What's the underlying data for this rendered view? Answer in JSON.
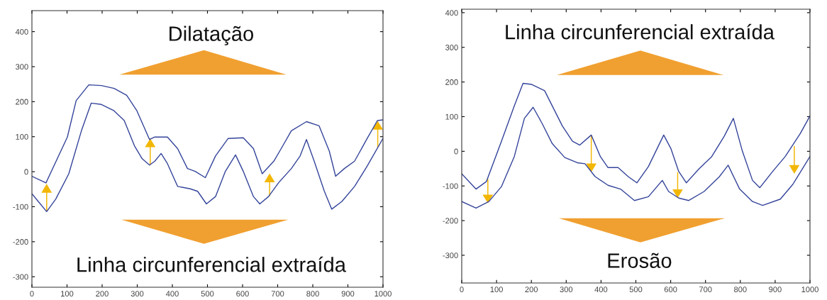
{
  "chart_data": [
    {
      "type": "line",
      "xlim": [
        0,
        1000
      ],
      "ylim": [
        -330,
        460
      ],
      "xticks": [
        0,
        100,
        200,
        300,
        400,
        500,
        600,
        700,
        800,
        900,
        1000
      ],
      "yticks": [
        -300,
        -200,
        -100,
        0,
        100,
        200,
        300,
        400
      ],
      "grid": false,
      "annotations": [
        "Dilatação",
        "Linha circunferencial extraída"
      ],
      "series": [
        {
          "color": "#34449a",
          "x": [
            0,
            40,
            101,
            126,
            162,
            198,
            234,
            270,
            299,
            335,
            350,
            386,
            415,
            443,
            465,
            494,
            523,
            559,
            602,
            631,
            656,
            689,
            710,
            739,
            782,
            818,
            847,
            865,
            890,
            919,
            955,
            984,
            1000
          ],
          "values": [
            -13,
            -32,
            99,
            203,
            248,
            246,
            238,
            218,
            174,
            92,
            99,
            99,
            66,
            9,
            1,
            -17,
            45,
            95,
            97,
            66,
            -6,
            30,
            66,
            117,
            143,
            131,
            59,
            -13,
            9,
            30,
            95,
            146,
            148
          ]
        },
        {
          "color": "#34449a",
          "x": [
            0,
            18,
            42,
            68,
            105,
            141,
            169,
            198,
            234,
            263,
            292,
            314,
            335,
            350,
            368,
            386,
            415,
            451,
            472,
            497,
            523,
            551,
            580,
            602,
            631,
            649,
            674,
            703,
            739,
            764,
            782,
            804,
            833,
            854,
            883,
            919,
            955,
            1000
          ],
          "values": [
            -63,
            -85,
            -114,
            -78,
            -6,
            117,
            196,
            192,
            174,
            146,
            74,
            37,
            19,
            30,
            52,
            23,
            -42,
            -49,
            -56,
            -92,
            -71,
            1,
            48,
            1,
            -71,
            -92,
            -71,
            -31,
            9,
            45,
            92,
            30,
            -56,
            -107,
            -85,
            -42,
            16,
            95
          ]
        }
      ]
    },
    {
      "type": "line",
      "xlim": [
        0,
        1000
      ],
      "ylim": [
        -380,
        410
      ],
      "xticks": [
        0,
        100,
        200,
        300,
        400,
        500,
        600,
        700,
        800,
        900,
        1000
      ],
      "yticks": [
        -300,
        -200,
        -100,
        0,
        100,
        200,
        300,
        400
      ],
      "grid": false,
      "annotations": [
        "Linha circunferencial extraída",
        "Erosão"
      ],
      "series": [
        {
          "color": "#34449a",
          "x": [
            0,
            41,
            71,
            114,
            151,
            176,
            201,
            238,
            260,
            289,
            318,
            339,
            372,
            398,
            420,
            449,
            478,
            503,
            536,
            580,
            601,
            623,
            645,
            681,
            718,
            754,
            780,
            806,
            835,
            856,
            893,
            929,
            972,
            1000
          ],
          "values": [
            -65,
            -109,
            -87,
            29,
            131,
            196,
            193,
            175,
            131,
            73,
            29,
            18,
            47,
            -15,
            -47,
            -47,
            -73,
            -91,
            -44,
            47,
            7,
            -58,
            -91,
            -51,
            -15,
            44,
            95,
            0,
            -84,
            -105,
            -58,
            -15,
            51,
            102
          ]
        },
        {
          "color": "#34449a",
          "x": [
            0,
            41,
            78,
            114,
            151,
            180,
            205,
            231,
            260,
            296,
            332,
            354,
            383,
            420,
            456,
            496,
            536,
            576,
            594,
            623,
            652,
            696,
            740,
            765,
            798,
            835,
            864,
            915,
            951,
            1000
          ],
          "values": [
            -145,
            -164,
            -145,
            -102,
            -15,
            95,
            127,
            80,
            22,
            -18,
            -33,
            -36,
            -73,
            -98,
            -109,
            -142,
            -131,
            -84,
            -116,
            -135,
            -142,
            -116,
            -73,
            -40,
            -109,
            -145,
            -156,
            -138,
            -95,
            -15
          ]
        }
      ]
    }
  ]
}
